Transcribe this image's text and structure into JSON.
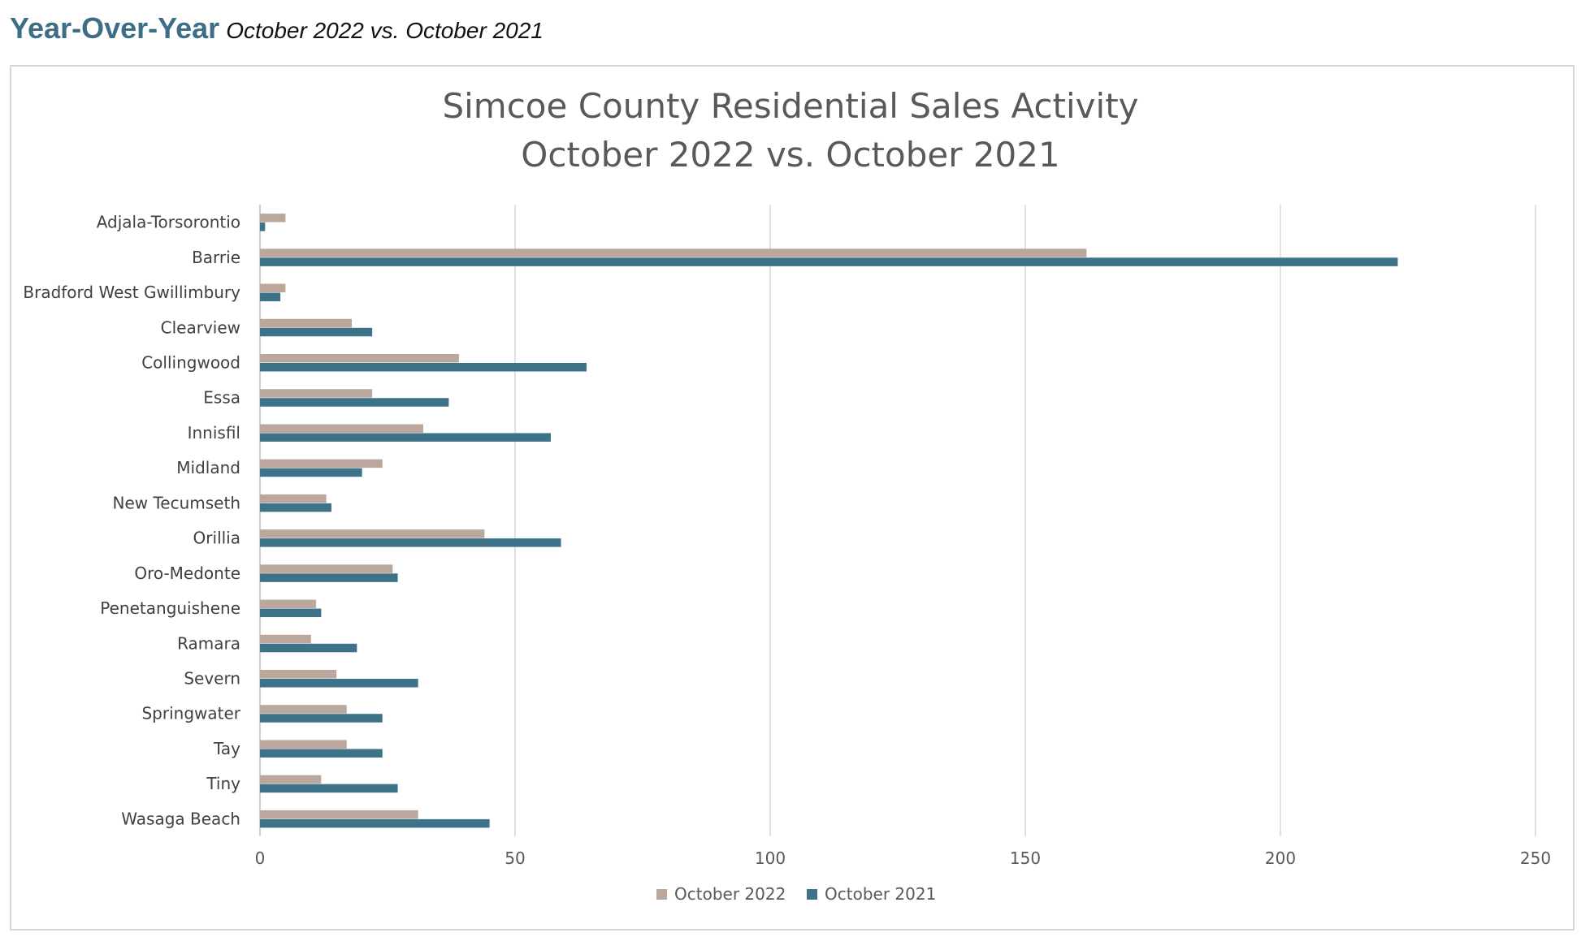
{
  "heading": {
    "title": "Year-Over-Year",
    "subtitle": "October 2022 vs. October 2021"
  },
  "chart_data": {
    "type": "bar",
    "orientation": "horizontal",
    "title": [
      "Simcoe County Residential Sales Activity",
      "October 2022 vs. October 2021"
    ],
    "xlabel": "",
    "ylabel": "",
    "xlim": [
      0,
      250
    ],
    "xticks": [
      0,
      50,
      100,
      150,
      200,
      250
    ],
    "grid": true,
    "legend_position": "bottom",
    "categories": [
      "Adjala-Torsorontio",
      "Barrie",
      "Bradford West Gwillimbury",
      "Clearview",
      "Collingwood",
      "Essa",
      "Innisfil",
      "Midland",
      "New Tecumseth",
      "Orillia",
      "Oro-Medonte",
      "Penetanguishene",
      "Ramara",
      "Severn",
      "Springwater",
      "Tay",
      "Tiny",
      "Wasaga Beach"
    ],
    "series": [
      {
        "name": "October 2022",
        "color": "#bba89c",
        "values": [
          5,
          162,
          5,
          18,
          39,
          22,
          32,
          24,
          13,
          44,
          26,
          11,
          10,
          15,
          17,
          17,
          12,
          31
        ]
      },
      {
        "name": "October 2021",
        "color": "#3d7289",
        "values": [
          1,
          223,
          4,
          22,
          64,
          37,
          57,
          20,
          14,
          59,
          27,
          12,
          19,
          31,
          24,
          24,
          27,
          45
        ]
      }
    ]
  }
}
